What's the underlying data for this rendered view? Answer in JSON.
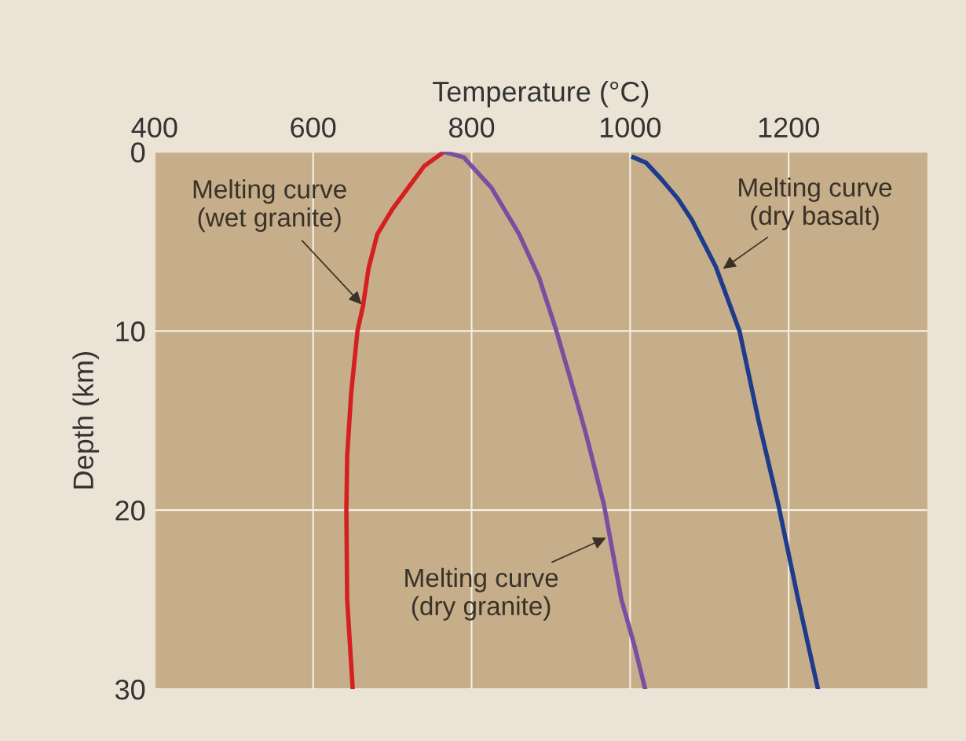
{
  "chart_data": {
    "type": "line",
    "xlabel": "Temperature (°C)",
    "ylabel": "Depth (km)",
    "xlim": [
      400,
      1375
    ],
    "xticks": [
      400,
      600,
      800,
      1000,
      1200
    ],
    "ylim": [
      30,
      0
    ],
    "yticks": [
      0,
      10,
      20,
      30
    ],
    "grid": true,
    "marker": "none",
    "line_style": "solid",
    "series": [
      {
        "color": "#d42020",
        "x": [
          765,
          740,
          720,
          700,
          681,
          670,
          663,
          656,
          648,
          643,
          642,
          643,
          650
        ],
        "values": [
          0,
          0.8,
          2,
          3.2,
          4.6,
          6.5,
          8.6,
          10,
          13.5,
          17,
          20,
          25,
          30
        ]
      },
      {
        "color": "#7a4fa0",
        "x": [
          765,
          790,
          825,
          860,
          885,
          907,
          930,
          944,
          967,
          989,
          1005,
          1019
        ],
        "values": [
          0,
          0.3,
          2,
          4.6,
          7,
          10,
          13.5,
          15.7,
          19.7,
          25,
          27.5,
          30
        ]
      },
      {
        "color": "#1f3b8c",
        "x": [
          1004,
          1020,
          1039,
          1060,
          1078,
          1108,
          1138,
          1162,
          1187,
          1212,
          1237
        ],
        "values": [
          0.3,
          0.6,
          1.5,
          2.6,
          3.8,
          6.4,
          10,
          15,
          19.7,
          25,
          30
        ]
      }
    ],
    "annotations": [
      {
        "text": "Melting curve\n(wet granite)",
        "x": 663,
        "y": 8.6
      },
      {
        "text": "Melting curve\n(dry basalt)",
        "x": 1115,
        "y": 6.6
      },
      {
        "text": "Melting curve\n(dry granite)",
        "x": 972,
        "y": 21.5
      }
    ]
  }
}
